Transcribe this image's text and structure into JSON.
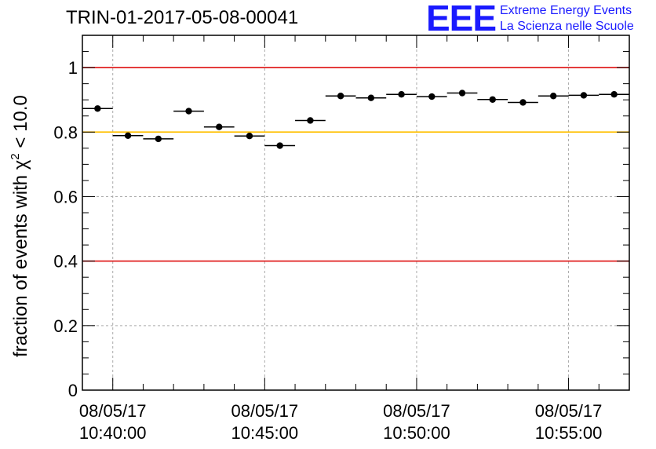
{
  "chart_data": {
    "type": "scatter",
    "title": "TRIN-01-2017-05-08-00041",
    "ylabel_prefix": "fraction of events with ",
    "ylabel_symbol": "χ",
    "ylabel_exponent": "2",
    "ylabel_suffix": " < 10.0",
    "xlabel": "",
    "ylim": [
      0,
      1.1
    ],
    "xlim": [
      "10:39:00",
      "10:57:00"
    ],
    "grid": true,
    "yticks": [
      "0",
      "0.2",
      "0.4",
      "0.6",
      "0.8",
      "1"
    ],
    "ytick_values": [
      0,
      0.2,
      0.4,
      0.6,
      0.8,
      1.0
    ],
    "xticks": [
      {
        "date": "08/05/17",
        "time": "10:40:00"
      },
      {
        "date": "08/05/17",
        "time": "10:45:00"
      },
      {
        "date": "08/05/17",
        "time": "10:50:00"
      },
      {
        "date": "08/05/17",
        "time": "10:55:00"
      }
    ],
    "xtick_minutes": [
      40,
      45,
      50,
      55
    ],
    "bin_width_minutes": 1,
    "points": [
      {
        "x": "10:39:30",
        "y": 0.873
      },
      {
        "x": "10:40:30",
        "y": 0.789
      },
      {
        "x": "10:41:30",
        "y": 0.779
      },
      {
        "x": "10:42:30",
        "y": 0.865
      },
      {
        "x": "10:43:30",
        "y": 0.816
      },
      {
        "x": "10:44:30",
        "y": 0.788
      },
      {
        "x": "10:45:30",
        "y": 0.758
      },
      {
        "x": "10:46:30",
        "y": 0.836
      },
      {
        "x": "10:47:30",
        "y": 0.912
      },
      {
        "x": "10:48:30",
        "y": 0.906
      },
      {
        "x": "10:49:30",
        "y": 0.917
      },
      {
        "x": "10:50:30",
        "y": 0.91
      },
      {
        "x": "10:51:30",
        "y": 0.921
      },
      {
        "x": "10:52:30",
        "y": 0.901
      },
      {
        "x": "10:53:30",
        "y": 0.892
      },
      {
        "x": "10:54:30",
        "y": 0.912
      },
      {
        "x": "10:55:30",
        "y": 0.914
      },
      {
        "x": "10:56:30",
        "y": 0.917
      }
    ],
    "reference_lines": [
      {
        "y": 1.0,
        "color": "#e02020"
      },
      {
        "y": 0.8,
        "color": "#ffc000"
      },
      {
        "y": 0.4,
        "color": "#e02020"
      }
    ]
  },
  "logo": {
    "mark": "EEE",
    "line1": "Extreme Energy Events",
    "line2": "La Scienza nelle Scuole",
    "color": "#1a1aff"
  }
}
